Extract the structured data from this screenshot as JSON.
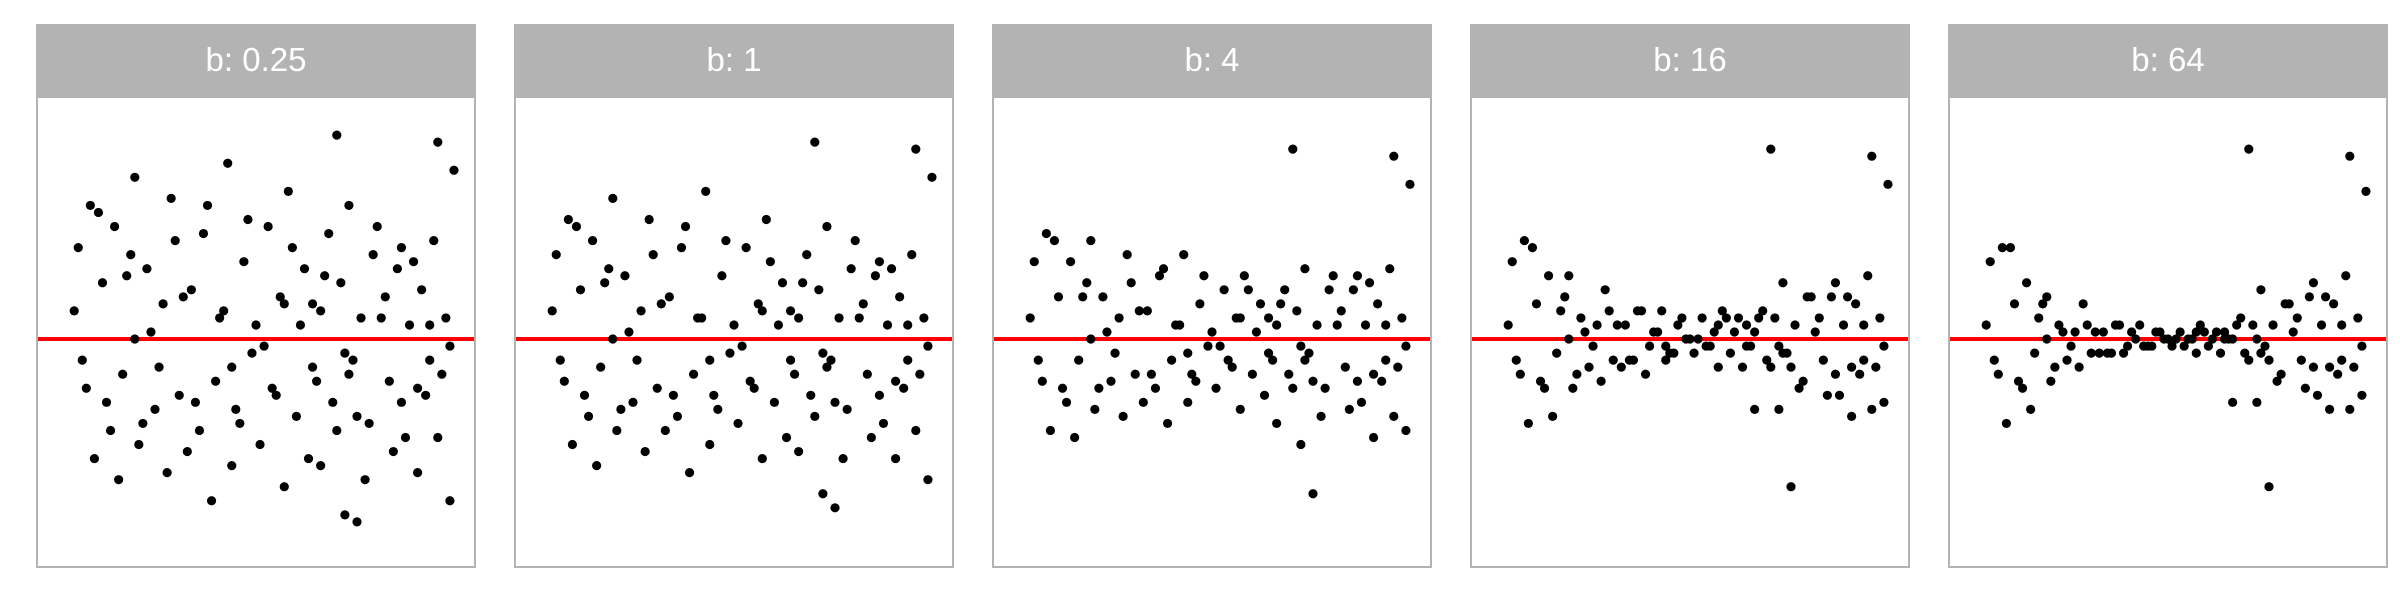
{
  "figure": {
    "line_color": "#ff0000",
    "point_color": "#000000",
    "strip_color": "#b3b3b3",
    "strip_text_color": "#ffffff"
  },
  "chart_data": [
    {
      "type": "scatter",
      "facet_label": "b: 0.25",
      "xlim": [
        0,
        1
      ],
      "ylim": [
        -3,
        3.2
      ],
      "hline": 0,
      "grid": false,
      "xlabel": "",
      "ylabel": "",
      "x": [
        0.06,
        0.09,
        0.12,
        0.05,
        0.15,
        0.18,
        0.2,
        0.23,
        0.27,
        0.3,
        0.34,
        0.38,
        0.41,
        0.43,
        0.47,
        0.5,
        0.53,
        0.56,
        0.58,
        0.62,
        0.66,
        0.68,
        0.71,
        0.73,
        0.76,
        0.79,
        0.82,
        0.85,
        0.88,
        0.91,
        0.94,
        0.97,
        0.07,
        0.13,
        0.17,
        0.22,
        0.26,
        0.31,
        0.36,
        0.4,
        0.45,
        0.49,
        0.54,
        0.6,
        0.64,
        0.69,
        0.74,
        0.78,
        0.83,
        0.87,
        0.92,
        0.96,
        0.1,
        0.16,
        0.21,
        0.28,
        0.33,
        0.39,
        0.44,
        0.51,
        0.57,
        0.63,
        0.7,
        0.77,
        0.84,
        0.9,
        0.95,
        0.08,
        0.14,
        0.25,
        0.35,
        0.46,
        0.55,
        0.65,
        0.75,
        0.86,
        0.93,
        0.11,
        0.19,
        0.29,
        0.37,
        0.48,
        0.59,
        0.67,
        0.8,
        0.89,
        0.24,
        0.42,
        0.52,
        0.61,
        0.72,
        0.81,
        0.98,
        0.32,
        0.57,
        0.73,
        0.86,
        0.2,
        0.44,
        0.64,
        0.9,
        0.93,
        0.72,
        0.98,
        0.95,
        0.99,
        0.66,
        0.7,
        0.75
      ],
      "y": [
        1.3,
        1.9,
        0.8,
        0.4,
        1.6,
        0.9,
        2.3,
        1.0,
        0.5,
        1.4,
        0.7,
        1.9,
        0.3,
        2.5,
        1.1,
        0.2,
        1.6,
        0.6,
        2.1,
        1.0,
        0.4,
        1.5,
        0.8,
        1.9,
        0.3,
        1.2,
        0.6,
        1.0,
        0.2,
        0.7,
        1.4,
        0.3,
        -0.3,
        -0.9,
        -0.5,
        -1.2,
        -0.4,
        -0.8,
        -1.3,
        -0.6,
        -1.0,
        -0.2,
        -0.7,
        -1.1,
        -0.4,
        -0.9,
        -0.3,
        -1.2,
        -0.6,
        -1.4,
        -0.8,
        -0.5,
        -1.7,
        -2.0,
        -1.5,
        -1.9,
        -1.6,
        -2.3,
        -1.8,
        -1.5,
        -2.1,
        -1.7,
        -1.3,
        -2.0,
        -1.6,
        -1.9,
        -1.4,
        -0.7,
        -1.3,
        -1.0,
        -0.9,
        -1.2,
        -0.8,
        -0.6,
        -1.1,
        -0.9,
        -0.3,
        1.8,
        1.2,
        2.0,
        1.5,
        1.7,
        1.3,
        0.9,
        1.6,
        1.1,
        0.1,
        0.4,
        -0.1,
        0.2,
        -0.2,
        0.3,
        -0.1,
        0.6,
        0.5,
        -0.5,
        1.3,
        0.0,
        -0.4,
        0.5,
        -0.7,
        0.2,
        -2.5,
        -2.3,
        2.8,
        2.4,
        -1.8,
        2.9,
        -2.6
      ]
    },
    {
      "type": "scatter",
      "facet_label": "b: 1",
      "xlim": [
        0,
        1
      ],
      "ylim": [
        -3,
        3.2
      ],
      "hline": 0,
      "grid": false,
      "xlabel": "",
      "ylabel": "",
      "x": [
        0.06,
        0.09,
        0.12,
        0.05,
        0.15,
        0.18,
        0.2,
        0.23,
        0.27,
        0.3,
        0.34,
        0.38,
        0.41,
        0.43,
        0.47,
        0.5,
        0.53,
        0.56,
        0.58,
        0.62,
        0.66,
        0.68,
        0.71,
        0.73,
        0.76,
        0.79,
        0.82,
        0.85,
        0.88,
        0.91,
        0.94,
        0.97,
        0.07,
        0.13,
        0.17,
        0.22,
        0.26,
        0.31,
        0.36,
        0.4,
        0.45,
        0.49,
        0.54,
        0.6,
        0.64,
        0.69,
        0.74,
        0.78,
        0.83,
        0.87,
        0.92,
        0.96,
        0.1,
        0.16,
        0.21,
        0.28,
        0.33,
        0.39,
        0.44,
        0.51,
        0.57,
        0.63,
        0.7,
        0.77,
        0.84,
        0.9,
        0.95,
        0.08,
        0.14,
        0.25,
        0.35,
        0.46,
        0.55,
        0.65,
        0.75,
        0.86,
        0.93,
        0.11,
        0.19,
        0.29,
        0.37,
        0.48,
        0.59,
        0.67,
        0.8,
        0.89,
        0.24,
        0.42,
        0.52,
        0.61,
        0.72,
        0.81,
        0.98,
        0.32,
        0.57,
        0.73,
        0.86,
        0.2,
        0.44,
        0.64,
        0.9,
        0.93,
        0.72,
        0.98,
        0.95,
        0.99,
        0.66,
        0.7,
        0.75
      ],
      "y": [
        1.2,
        1.7,
        0.7,
        0.4,
        1.4,
        0.8,
        2.0,
        0.9,
        0.4,
        1.2,
        0.6,
        1.6,
        0.3,
        2.1,
        0.9,
        0.2,
        1.3,
        0.5,
        1.7,
        0.8,
        0.3,
        1.2,
        0.7,
        1.6,
        0.3,
        1.0,
        0.5,
        0.9,
        0.2,
        0.6,
        1.2,
        0.3,
        -0.3,
        -0.8,
        -0.4,
        -1.0,
        -0.3,
        -0.7,
        -1.1,
        -0.5,
        -0.8,
        -0.2,
        -0.6,
        -0.9,
        -0.3,
        -0.8,
        -0.3,
        -1.0,
        -0.5,
        -1.2,
        -0.7,
        -0.5,
        -1.5,
        -1.8,
        -1.3,
        -1.6,
        -1.3,
        -1.9,
        -1.5,
        -1.2,
        -1.7,
        -1.4,
        -1.1,
        -1.7,
        -1.4,
        -1.7,
        -1.3,
        -0.6,
        -1.1,
        -0.9,
        -0.8,
        -1.0,
        -0.7,
        -0.5,
        -0.9,
        -0.8,
        -0.3,
        1.6,
        1.0,
        1.7,
        1.3,
        1.4,
        1.1,
        0.8,
        1.4,
        1.0,
        0.1,
        0.3,
        -0.1,
        0.2,
        -0.2,
        0.3,
        -0.1,
        0.5,
        0.4,
        -0.4,
        1.1,
        0.0,
        -0.3,
        0.4,
        -0.6,
        0.2,
        -2.2,
        -2.0,
        2.7,
        2.3,
        -1.6,
        2.8,
        -2.4
      ]
    },
    {
      "type": "scatter",
      "facet_label": "b: 4",
      "xlim": [
        0,
        1
      ],
      "ylim": [
        -3,
        3.2
      ],
      "hline": 0,
      "grid": false,
      "xlabel": "",
      "ylabel": "",
      "x": [
        0.06,
        0.09,
        0.12,
        0.05,
        0.15,
        0.18,
        0.2,
        0.23,
        0.27,
        0.3,
        0.34,
        0.38,
        0.41,
        0.43,
        0.47,
        0.5,
        0.53,
        0.56,
        0.58,
        0.62,
        0.66,
        0.68,
        0.71,
        0.73,
        0.76,
        0.79,
        0.82,
        0.85,
        0.88,
        0.91,
        0.94,
        0.97,
        0.07,
        0.13,
        0.17,
        0.22,
        0.26,
        0.31,
        0.36,
        0.4,
        0.45,
        0.49,
        0.54,
        0.6,
        0.64,
        0.69,
        0.74,
        0.78,
        0.83,
        0.87,
        0.92,
        0.96,
        0.1,
        0.16,
        0.21,
        0.28,
        0.33,
        0.39,
        0.44,
        0.51,
        0.57,
        0.63,
        0.7,
        0.77,
        0.84,
        0.9,
        0.95,
        0.08,
        0.14,
        0.25,
        0.35,
        0.46,
        0.55,
        0.65,
        0.75,
        0.86,
        0.93,
        0.11,
        0.19,
        0.29,
        0.37,
        0.48,
        0.59,
        0.67,
        0.8,
        0.89,
        0.24,
        0.42,
        0.52,
        0.61,
        0.72,
        0.81,
        0.98,
        0.32,
        0.57,
        0.73,
        0.86,
        0.2,
        0.44,
        0.64,
        0.9,
        0.93,
        0.72,
        0.98,
        0.95,
        0.99,
        0.66,
        0.7,
        0.75
      ],
      "y": [
        1.1,
        1.5,
        0.6,
        0.3,
        1.1,
        0.6,
        1.4,
        0.6,
        0.3,
        0.8,
        0.4,
        1.0,
        0.2,
        1.2,
        0.5,
        0.1,
        0.7,
        0.3,
        0.9,
        0.5,
        0.2,
        0.7,
        0.4,
        1.0,
        0.2,
        0.7,
        0.4,
        0.7,
        0.2,
        0.5,
        1.0,
        0.3,
        -0.3,
        -0.7,
        -0.3,
        -0.7,
        -0.2,
        -0.5,
        -0.7,
        -0.3,
        -0.5,
        -0.1,
        -0.3,
        -0.5,
        -0.2,
        -0.5,
        -0.2,
        -0.7,
        -0.4,
        -0.9,
        -0.6,
        -0.4,
        -1.3,
        -1.4,
        -1.0,
        -1.1,
        -0.9,
        -1.2,
        -0.9,
        -0.7,
        -1.0,
        -0.8,
        -0.7,
        -1.1,
        -1.0,
        -1.4,
        -1.1,
        -0.6,
        -0.9,
        -0.6,
        -0.5,
        -0.6,
        -0.4,
        -0.3,
        -0.6,
        -0.6,
        -0.3,
        1.4,
        0.8,
        1.2,
        0.9,
        0.9,
        0.7,
        0.5,
        0.9,
        0.8,
        0.1,
        0.2,
        -0.1,
        0.1,
        -0.1,
        0.2,
        -0.1,
        0.4,
        0.3,
        -0.3,
        0.9,
        0.0,
        -0.2,
        0.3,
        -0.5,
        0.2,
        -1.5,
        -1.3,
        2.6,
        2.2,
        -1.2,
        2.7,
        -2.2
      ]
    },
    {
      "type": "scatter",
      "facet_label": "b: 16",
      "xlim": [
        0,
        1
      ],
      "ylim": [
        -3,
        3.2
      ],
      "hline": 0,
      "grid": false,
      "xlabel": "",
      "ylabel": "",
      "x": [
        0.06,
        0.09,
        0.12,
        0.05,
        0.15,
        0.18,
        0.2,
        0.23,
        0.27,
        0.3,
        0.34,
        0.38,
        0.41,
        0.43,
        0.47,
        0.5,
        0.53,
        0.56,
        0.58,
        0.62,
        0.66,
        0.68,
        0.71,
        0.73,
        0.76,
        0.79,
        0.82,
        0.85,
        0.88,
        0.91,
        0.94,
        0.97,
        0.07,
        0.13,
        0.17,
        0.22,
        0.26,
        0.31,
        0.36,
        0.4,
        0.45,
        0.49,
        0.54,
        0.6,
        0.64,
        0.69,
        0.74,
        0.78,
        0.83,
        0.87,
        0.92,
        0.96,
        0.1,
        0.16,
        0.21,
        0.28,
        0.33,
        0.39,
        0.44,
        0.51,
        0.57,
        0.63,
        0.7,
        0.77,
        0.84,
        0.9,
        0.95,
        0.08,
        0.14,
        0.25,
        0.35,
        0.46,
        0.55,
        0.65,
        0.75,
        0.86,
        0.93,
        0.11,
        0.19,
        0.29,
        0.37,
        0.48,
        0.59,
        0.67,
        0.8,
        0.89,
        0.24,
        0.42,
        0.52,
        0.61,
        0.72,
        0.81,
        0.98,
        0.32,
        0.57,
        0.73,
        0.86,
        0.2,
        0.44,
        0.64,
        0.9,
        0.93,
        0.72,
        0.98,
        0.95,
        0.99,
        0.66,
        0.7,
        0.75
      ],
      "y": [
        1.1,
        1.4,
        0.5,
        0.2,
        0.9,
        0.4,
        0.9,
        0.3,
        0.2,
        0.4,
        0.2,
        0.4,
        0.1,
        0.4,
        0.2,
        0.0,
        0.3,
        0.1,
        0.4,
        0.3,
        0.1,
        0.4,
        0.3,
        0.8,
        0.2,
        0.6,
        0.3,
        0.6,
        0.2,
        0.5,
        0.9,
        0.3,
        -0.3,
        -0.6,
        -0.2,
        -0.5,
        -0.1,
        -0.3,
        -0.3,
        -0.1,
        -0.2,
        0.0,
        -0.1,
        -0.2,
        -0.1,
        -0.3,
        -0.2,
        -0.6,
        -0.3,
        -0.8,
        -0.5,
        -0.4,
        -1.2,
        -1.1,
        -0.7,
        -0.6,
        -0.4,
        -0.5,
        -0.3,
        -0.2,
        -0.4,
        -0.4,
        -0.4,
        -0.7,
        -0.8,
        -1.1,
        -1.0,
        -0.5,
        -0.7,
        -0.4,
        -0.3,
        -0.2,
        -0.1,
        -0.1,
        -0.4,
        -0.5,
        -0.3,
        1.3,
        0.6,
        0.7,
        0.4,
        0.3,
        0.3,
        0.3,
        0.6,
        0.6,
        0.1,
        0.1,
        0.0,
        0.1,
        -0.1,
        0.1,
        -0.1,
        0.2,
        0.2,
        -0.2,
        0.8,
        0.0,
        -0.1,
        0.2,
        -0.4,
        0.2,
        -1.0,
        -0.9,
        2.6,
        2.2,
        -1.0,
        2.7,
        -2.1
      ]
    },
    {
      "type": "scatter",
      "facet_label": "b: 64",
      "xlim": [
        0,
        1
      ],
      "ylim": [
        -3,
        3.2
      ],
      "hline": 0,
      "grid": false,
      "xlabel": "",
      "ylabel": "",
      "x": [
        0.06,
        0.09,
        0.12,
        0.05,
        0.15,
        0.18,
        0.2,
        0.23,
        0.27,
        0.3,
        0.34,
        0.38,
        0.41,
        0.43,
        0.47,
        0.5,
        0.53,
        0.56,
        0.58,
        0.62,
        0.66,
        0.68,
        0.71,
        0.73,
        0.76,
        0.79,
        0.82,
        0.85,
        0.88,
        0.91,
        0.94,
        0.97,
        0.07,
        0.13,
        0.17,
        0.22,
        0.26,
        0.31,
        0.36,
        0.4,
        0.45,
        0.49,
        0.54,
        0.6,
        0.64,
        0.69,
        0.74,
        0.78,
        0.83,
        0.87,
        0.92,
        0.96,
        0.1,
        0.16,
        0.21,
        0.28,
        0.33,
        0.39,
        0.44,
        0.51,
        0.57,
        0.63,
        0.7,
        0.77,
        0.84,
        0.9,
        0.95,
        0.08,
        0.14,
        0.25,
        0.35,
        0.46,
        0.55,
        0.65,
        0.75,
        0.86,
        0.93,
        0.11,
        0.19,
        0.29,
        0.37,
        0.48,
        0.59,
        0.67,
        0.8,
        0.89,
        0.24,
        0.42,
        0.52,
        0.61,
        0.72,
        0.81,
        0.98,
        0.32,
        0.57,
        0.73,
        0.86,
        0.2,
        0.44,
        0.64,
        0.9,
        0.93,
        0.72,
        0.98,
        0.95,
        0.99,
        0.66,
        0.7,
        0.75
      ],
      "y": [
        1.1,
        1.3,
        0.5,
        0.2,
        0.8,
        0.3,
        0.6,
        0.2,
        0.1,
        0.2,
        0.1,
        0.2,
        0.1,
        0.2,
        0.1,
        0.0,
        0.1,
        0.0,
        0.2,
        0.1,
        0.0,
        0.3,
        0.2,
        0.7,
        0.2,
        0.5,
        0.3,
        0.6,
        0.2,
        0.5,
        0.9,
        0.3,
        -0.3,
        -0.6,
        -0.2,
        -0.4,
        -0.1,
        -0.2,
        -0.2,
        -0.1,
        -0.1,
        0.0,
        -0.1,
        -0.1,
        0.0,
        -0.2,
        -0.1,
        -0.5,
        -0.3,
        -0.8,
        -0.5,
        -0.4,
        -1.2,
        -1.0,
        -0.6,
        -0.4,
        -0.2,
        -0.2,
        -0.1,
        -0.1,
        -0.2,
        -0.2,
        -0.3,
        -0.6,
        -0.7,
        -1.0,
        -1.0,
        -0.5,
        -0.7,
        -0.3,
        -0.2,
        -0.1,
        0.0,
        0.0,
        -0.3,
        -0.4,
        -0.3,
        1.3,
        0.5,
        0.5,
        0.2,
        0.1,
        0.1,
        0.2,
        0.5,
        0.6,
        0.1,
        0.0,
        0.0,
        0.0,
        0.0,
        0.1,
        -0.1,
        0.1,
        0.1,
        -0.2,
        0.8,
        0.0,
        -0.1,
        0.1,
        -0.4,
        0.2,
        -0.9,
        -0.8,
        2.6,
        2.1,
        -0.9,
        2.7,
        -2.1
      ]
    }
  ]
}
